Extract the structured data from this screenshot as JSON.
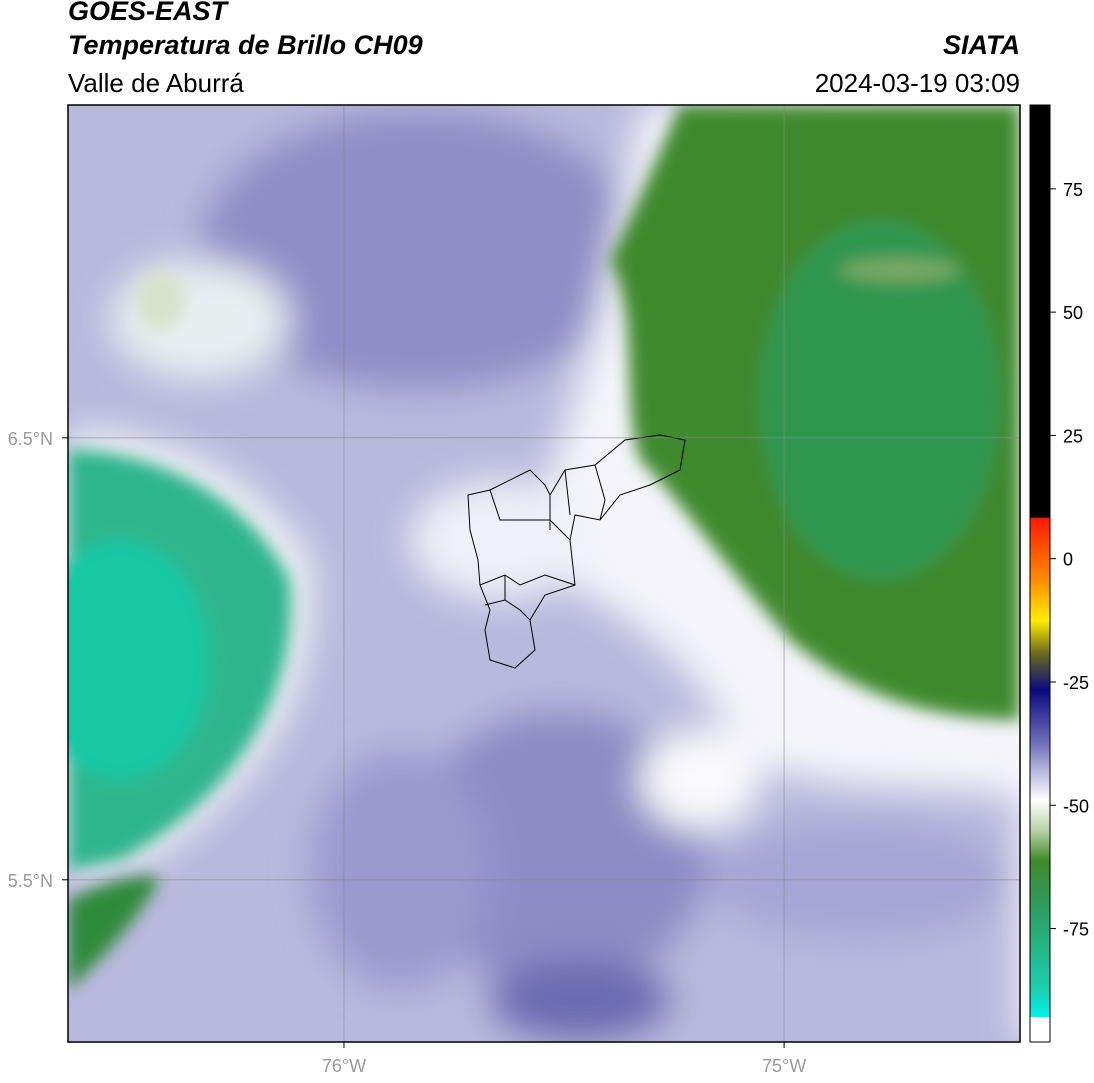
{
  "header": {
    "title": "GOES-EAST",
    "subtitle": "Temperatura de Brillo CH09",
    "region": "Valle de Aburrá",
    "source": "SIATA",
    "datetime": "2024-03-19 03:09"
  },
  "map": {
    "xlim": [
      -76.627,
      -74.464
    ],
    "ylim": [
      5.133,
      7.253
    ],
    "xticks": [
      {
        "value": -76,
        "label": "76°W"
      },
      {
        "value": -75,
        "label": "75°W"
      }
    ],
    "yticks": [
      {
        "value": 6.5,
        "label": "6.5°N"
      },
      {
        "value": 5.5,
        "label": "5.5°N"
      }
    ]
  },
  "colorbar": {
    "range": [
      -98,
      92
    ],
    "ticks": [
      75,
      50,
      25,
      0,
      -25,
      -50,
      -75
    ]
  }
}
